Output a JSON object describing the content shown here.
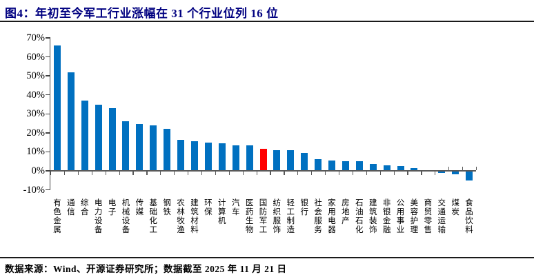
{
  "figure": {
    "title": "图4：年初至今军工行业涨幅在 31 个行业位列 16 位",
    "source": "数据来源：Wind、开源证券研究所；数据截至 2025 年 11 月 21 日"
  },
  "colors": {
    "title": "#000080",
    "bar": "#0070C0",
    "highlight": "#FF0000",
    "y_axis": "#404040",
    "x_axis": "#595959",
    "rule": "#1a1a1a",
    "text": "#000000"
  },
  "chart_data": {
    "type": "bar",
    "title": "年初至今军工行业涨幅在 31 个行业位列 16 位",
    "xlabel": "",
    "ylabel": "",
    "ylim": [
      -10,
      70
    ],
    "ytick_step": 10,
    "ytick_labels": [
      "70%",
      "60%",
      "50%",
      "40%",
      "30%",
      "20%",
      "10%",
      "0%",
      "-10%"
    ],
    "grid": false,
    "legend": false,
    "highlight_index": 15,
    "highlight_category": "国防军工",
    "categories": [
      "有色金属",
      "通信",
      "综合",
      "电力设备",
      "电子",
      "机械设备",
      "传媒",
      "基础化工",
      "钢铁",
      "农林牧渔",
      "建筑材料",
      "环保",
      "计算机",
      "汽车",
      "医药生物",
      "国防军工",
      "纺织服饰",
      "轻工制造",
      "银行",
      "社会服务",
      "家用电器",
      "房地产",
      "石油石化",
      "建筑装饰",
      "非银金融",
      "公用事业",
      "美容护理",
      "商贸零售",
      "交通运输",
      "煤炭",
      "食品饮料"
    ],
    "values": [
      66,
      52,
      37,
      35,
      33,
      26,
      24.5,
      24,
      22,
      16.5,
      15.5,
      15,
      14.5,
      13.5,
      13.5,
      11.5,
      11,
      11,
      9.5,
      6,
      5.5,
      5,
      5,
      3.5,
      3,
      2.5,
      1.5,
      0.5,
      -1,
      -1.7,
      -5
    ]
  }
}
